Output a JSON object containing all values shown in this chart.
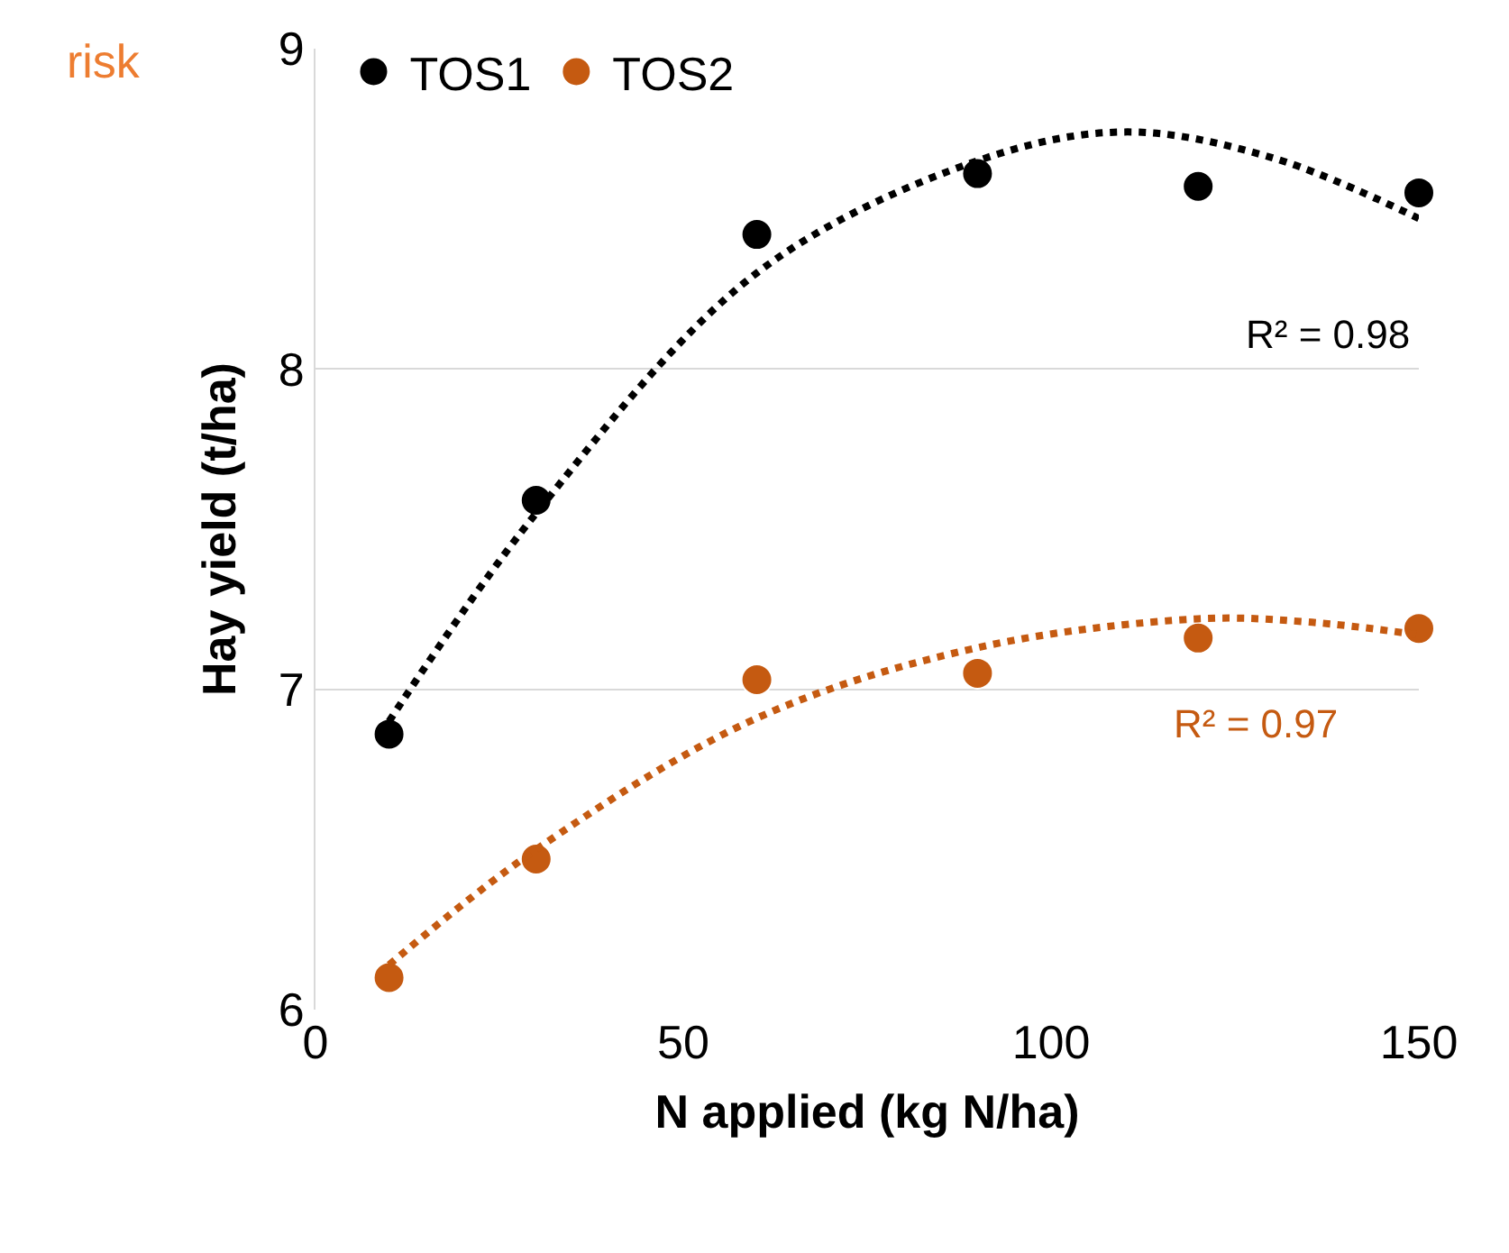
{
  "chart_data": {
    "type": "scatter",
    "xlabel": "N applied (kg N/ha)",
    "ylabel": "Hay yield (t/ha)",
    "xlim": [
      0,
      150
    ],
    "ylim": [
      6,
      9
    ],
    "xticks": [
      0,
      50,
      100,
      150
    ],
    "yticks": [
      6,
      7,
      8,
      9
    ],
    "grid": "y",
    "legend": "top left",
    "series": [
      {
        "name": "TOS1",
        "color": "#000000",
        "marker": "circle",
        "x": [
          10,
          30,
          60,
          90,
          120,
          150
        ],
        "values": [
          6.86,
          7.59,
          8.42,
          8.61,
          8.57,
          8.55
        ]
      },
      {
        "name": "TOS2",
        "color": "#c55a11",
        "marker": "circle",
        "x": [
          10,
          30,
          60,
          90,
          120,
          150
        ],
        "values": [
          6.1,
          6.47,
          7.03,
          7.05,
          7.16,
          7.19
        ]
      },
      {
        "type": "line",
        "color": "#000000",
        "line_style": "dotted",
        "marker": "none",
        "x": [
          10,
          30,
          60,
          90,
          110,
          130,
          150
        ],
        "values": [
          6.9,
          7.55,
          8.3,
          8.65,
          8.74,
          8.66,
          8.47
        ]
      },
      {
        "type": "line",
        "color": "#c55a11",
        "line_style": "dotted",
        "marker": "none",
        "x": [
          10,
          30,
          60,
          90,
          120,
          135,
          150
        ],
        "values": [
          6.14,
          6.5,
          6.91,
          7.13,
          7.22,
          7.21,
          7.17
        ]
      }
    ],
    "annotations": [
      "R² = 0.98",
      "R² = 0.97",
      "risk"
    ]
  }
}
